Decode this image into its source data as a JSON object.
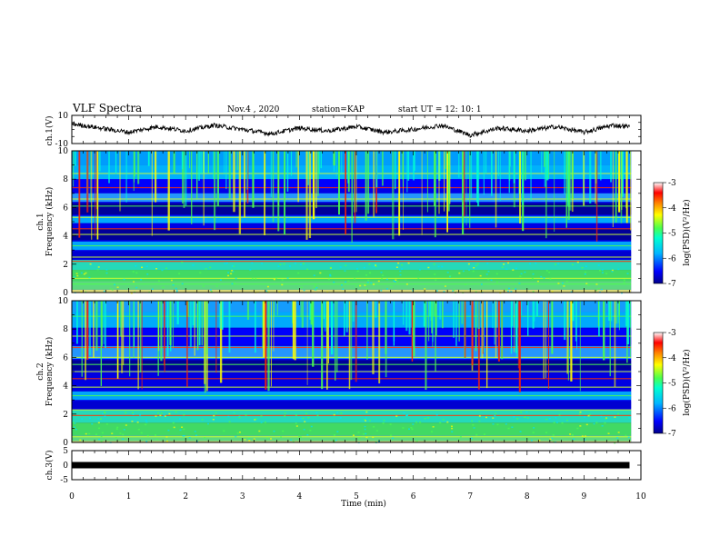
{
  "header": {
    "title": "VLF Spectra",
    "date": "Nov.4 , 2020",
    "station": "station=KAP",
    "start": "start UT = 12: 10: 1"
  },
  "colors": {
    "spectrum_scale": [
      "#00008b",
      "#0000ff",
      "#00b7ff",
      "#00ffd0",
      "#4cff4c",
      "#ffff00",
      "#ff8000",
      "#ff0000",
      "#ffffff"
    ],
    "trace": "#000000"
  },
  "chart_data": [
    {
      "type": "line",
      "panel": "ch1-waveform",
      "ylabel": "ch.1(V)",
      "ylim": [
        -10,
        10
      ],
      "yticks": [
        "10",
        "-10"
      ],
      "xlim": [
        0,
        10
      ],
      "series": [
        {
          "x": [
            0,
            0.5,
            1,
            1.5,
            2,
            2.5,
            3,
            3.5,
            4,
            4.5,
            5,
            5.5,
            6,
            6.5,
            7,
            7.5,
            8,
            8.5,
            9,
            9.5,
            9.8
          ],
          "values": [
            4,
            1,
            -2,
            2,
            -1,
            3,
            0,
            -3,
            1,
            -1,
            2,
            -2,
            0,
            3,
            -4,
            1,
            -1,
            2,
            -2,
            3,
            2
          ]
        }
      ]
    },
    {
      "type": "heatmap",
      "panel": "ch1-spectrogram",
      "ylabel": "ch.1",
      "ylabel2": "Frequency (kHz)",
      "ylim": [
        0,
        10
      ],
      "yticks": [
        "0",
        "2",
        "4",
        "6",
        "8",
        "10"
      ],
      "xlim": [
        0,
        10
      ],
      "colorbar": {
        "label": "log(PSD)(V²/Hz)",
        "range": [
          -7,
          -3
        ],
        "ticks": [
          "-3",
          "-4",
          "-5",
          "-6",
          "-7"
        ]
      }
    },
    {
      "type": "heatmap",
      "panel": "ch2-spectrogram",
      "ylabel": "ch.2",
      "ylabel2": "Frequency (kHz)",
      "ylim": [
        0,
        10
      ],
      "yticks": [
        "0",
        "2",
        "4",
        "6",
        "8",
        "10"
      ],
      "xlim": [
        0,
        10
      ],
      "colorbar": {
        "label": "log(PSD)(V²/Hz)",
        "range": [
          -7,
          -3
        ],
        "ticks": [
          "-3",
          "-4",
          "-5",
          "-6",
          "-7"
        ]
      }
    },
    {
      "type": "line",
      "panel": "ch3-waveform",
      "ylabel": "ch.3(V)",
      "ylim": [
        -5,
        5
      ],
      "yticks": [
        "5",
        "0",
        "-5"
      ],
      "xlim": [
        0,
        10
      ],
      "series": [
        {
          "x": [
            0,
            9.8
          ],
          "values": [
            0,
            0
          ]
        }
      ]
    }
  ],
  "xaxis": {
    "label": "Time (min)",
    "ticks": [
      "0",
      "1",
      "2",
      "3",
      "4",
      "5",
      "6",
      "7",
      "8",
      "9",
      "10"
    ],
    "range": [
      0,
      10
    ]
  }
}
